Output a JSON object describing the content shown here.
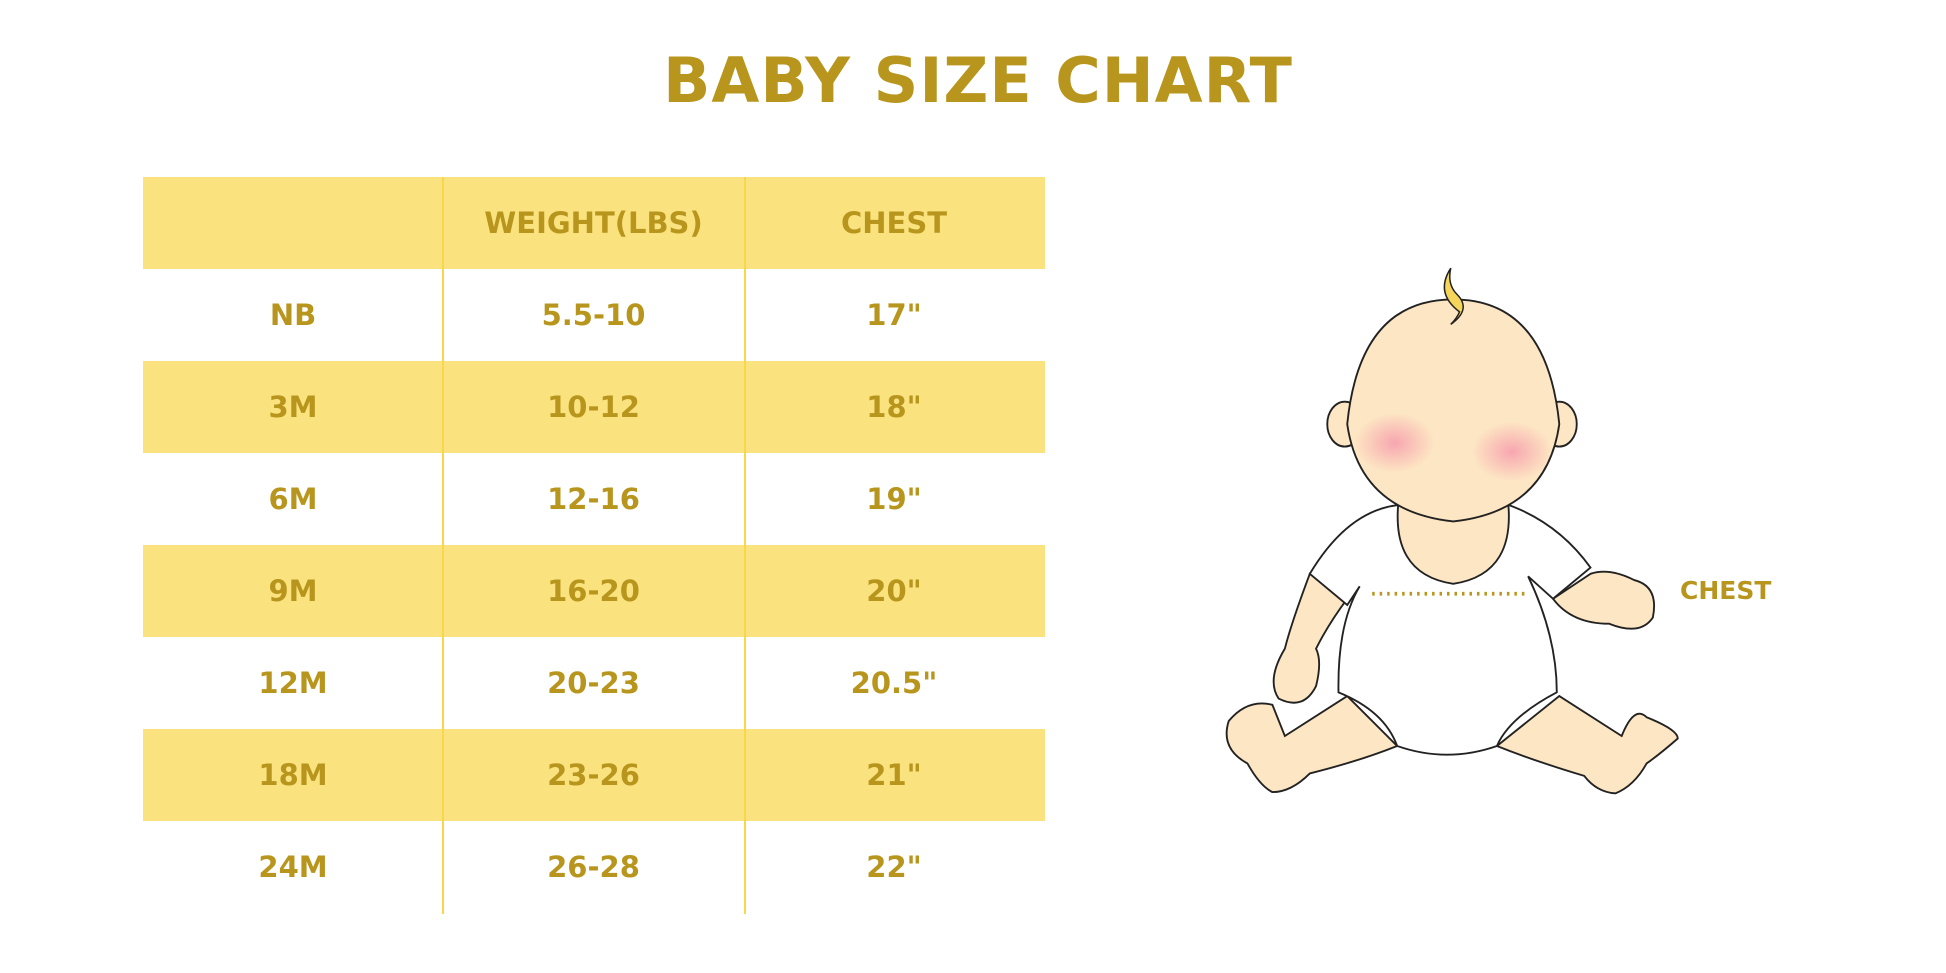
{
  "title": "BABY SIZE CHART",
  "table": {
    "headers": [
      "",
      "WEIGHT(LBS)",
      "CHEST"
    ],
    "rows": [
      [
        "NB",
        "5.5-10",
        "17\""
      ],
      [
        "3M",
        "10-12",
        "18\""
      ],
      [
        "6M",
        "12-16",
        "19\""
      ],
      [
        "9M",
        "16-20",
        "20\""
      ],
      [
        "12M",
        "20-23",
        "20.5\""
      ],
      [
        "18M",
        "23-26",
        "21\""
      ],
      [
        "24M",
        "26-28",
        "22\""
      ]
    ]
  },
  "illustration": {
    "chest_label": "CHEST"
  },
  "colors": {
    "text": "#B8961E",
    "band": "#FAE37E",
    "divider": "#F7D84A"
  }
}
